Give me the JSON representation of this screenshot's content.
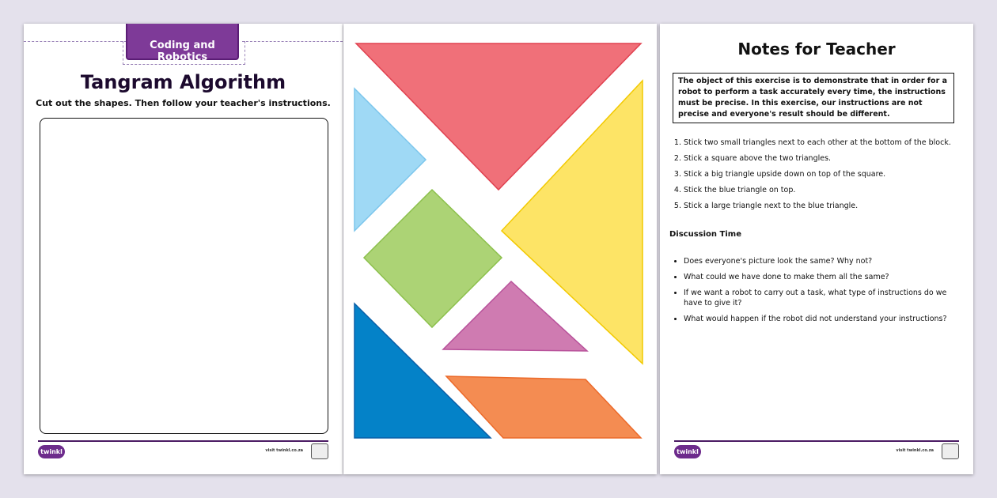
{
  "worksheet": {
    "tag": "Coding and Robotics",
    "title": "Tangram Algorithm",
    "subtitle": "Cut out the shapes. Then follow your teacher's instructions."
  },
  "footer": {
    "logo": "twinkl",
    "url": "visit twinkl.co.za"
  },
  "tangram": {
    "colors": {
      "red": "#f07079",
      "lightblue": "#9fd9f5",
      "yellow": "#fde466",
      "green": "#acd375",
      "purple": "#cf7bb1",
      "blue": "#0482c8",
      "orange": "#f48c52"
    }
  },
  "notes": {
    "title": "Notes for Teacher",
    "objective": "The object of this exercise is to demonstrate that in order for a robot to perform a task accurately every time, the instructions must be precise. In this exercise, our instructions are not precise and everyone's result should be different.",
    "steps": [
      "Stick two small triangles next to each other at the bottom of the block.",
      "Stick a square above the two triangles.",
      "Stick a big triangle upside down on top of the square.",
      "Stick the blue triangle on top.",
      "Stick a large triangle next to the blue triangle."
    ],
    "discussion_title": "Discussion Time",
    "questions": [
      "Does everyone's picture look the same? Why not?",
      "What could we have done to make them all the same?",
      "If we want a robot to carry out a task, what type of instructions do we have to give it?",
      "What would happen if the robot did not understand your instructions?"
    ]
  }
}
